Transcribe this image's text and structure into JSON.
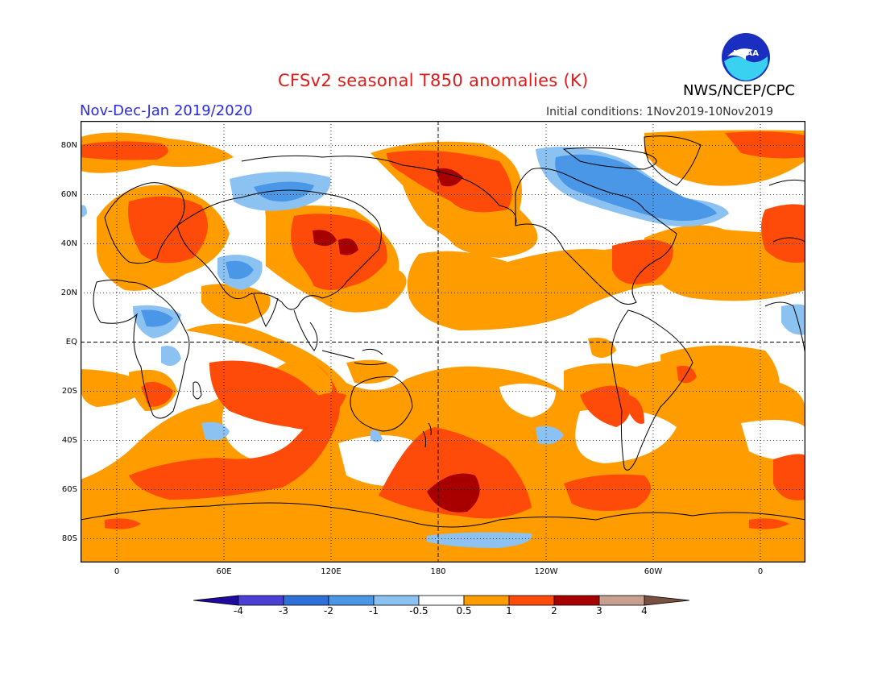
{
  "title": "CFSv2 seasonal T850 anomalies (K)",
  "season": "Nov-Dec-Jan 2019/2020",
  "initial_conditions": "Initial conditions: 1Nov2019-10Nov2019",
  "agency": "NWS/NCEP/CPC",
  "logo_text": "NOAA",
  "map": {
    "lat_labels": [
      "80N",
      "60N",
      "40N",
      "20N",
      "EQ",
      "20S",
      "40S",
      "60S",
      "80S"
    ],
    "lon_labels": [
      "0",
      "60E",
      "120E",
      "180",
      "120W",
      "60W",
      "0"
    ]
  },
  "colorbar": {
    "ticks": [
      "-4",
      "-3",
      "-2",
      "-1",
      "-0.5",
      "0.5",
      "1",
      "2",
      "3",
      "4"
    ],
    "colors": [
      "#1e0a9e",
      "#4b3fd6",
      "#2e6fd8",
      "#4a97e8",
      "#8cc2f2",
      "#ffffff",
      "#ff9c00",
      "#ff4b0a",
      "#a80000",
      "#c7a090",
      "#7a5040"
    ]
  }
}
